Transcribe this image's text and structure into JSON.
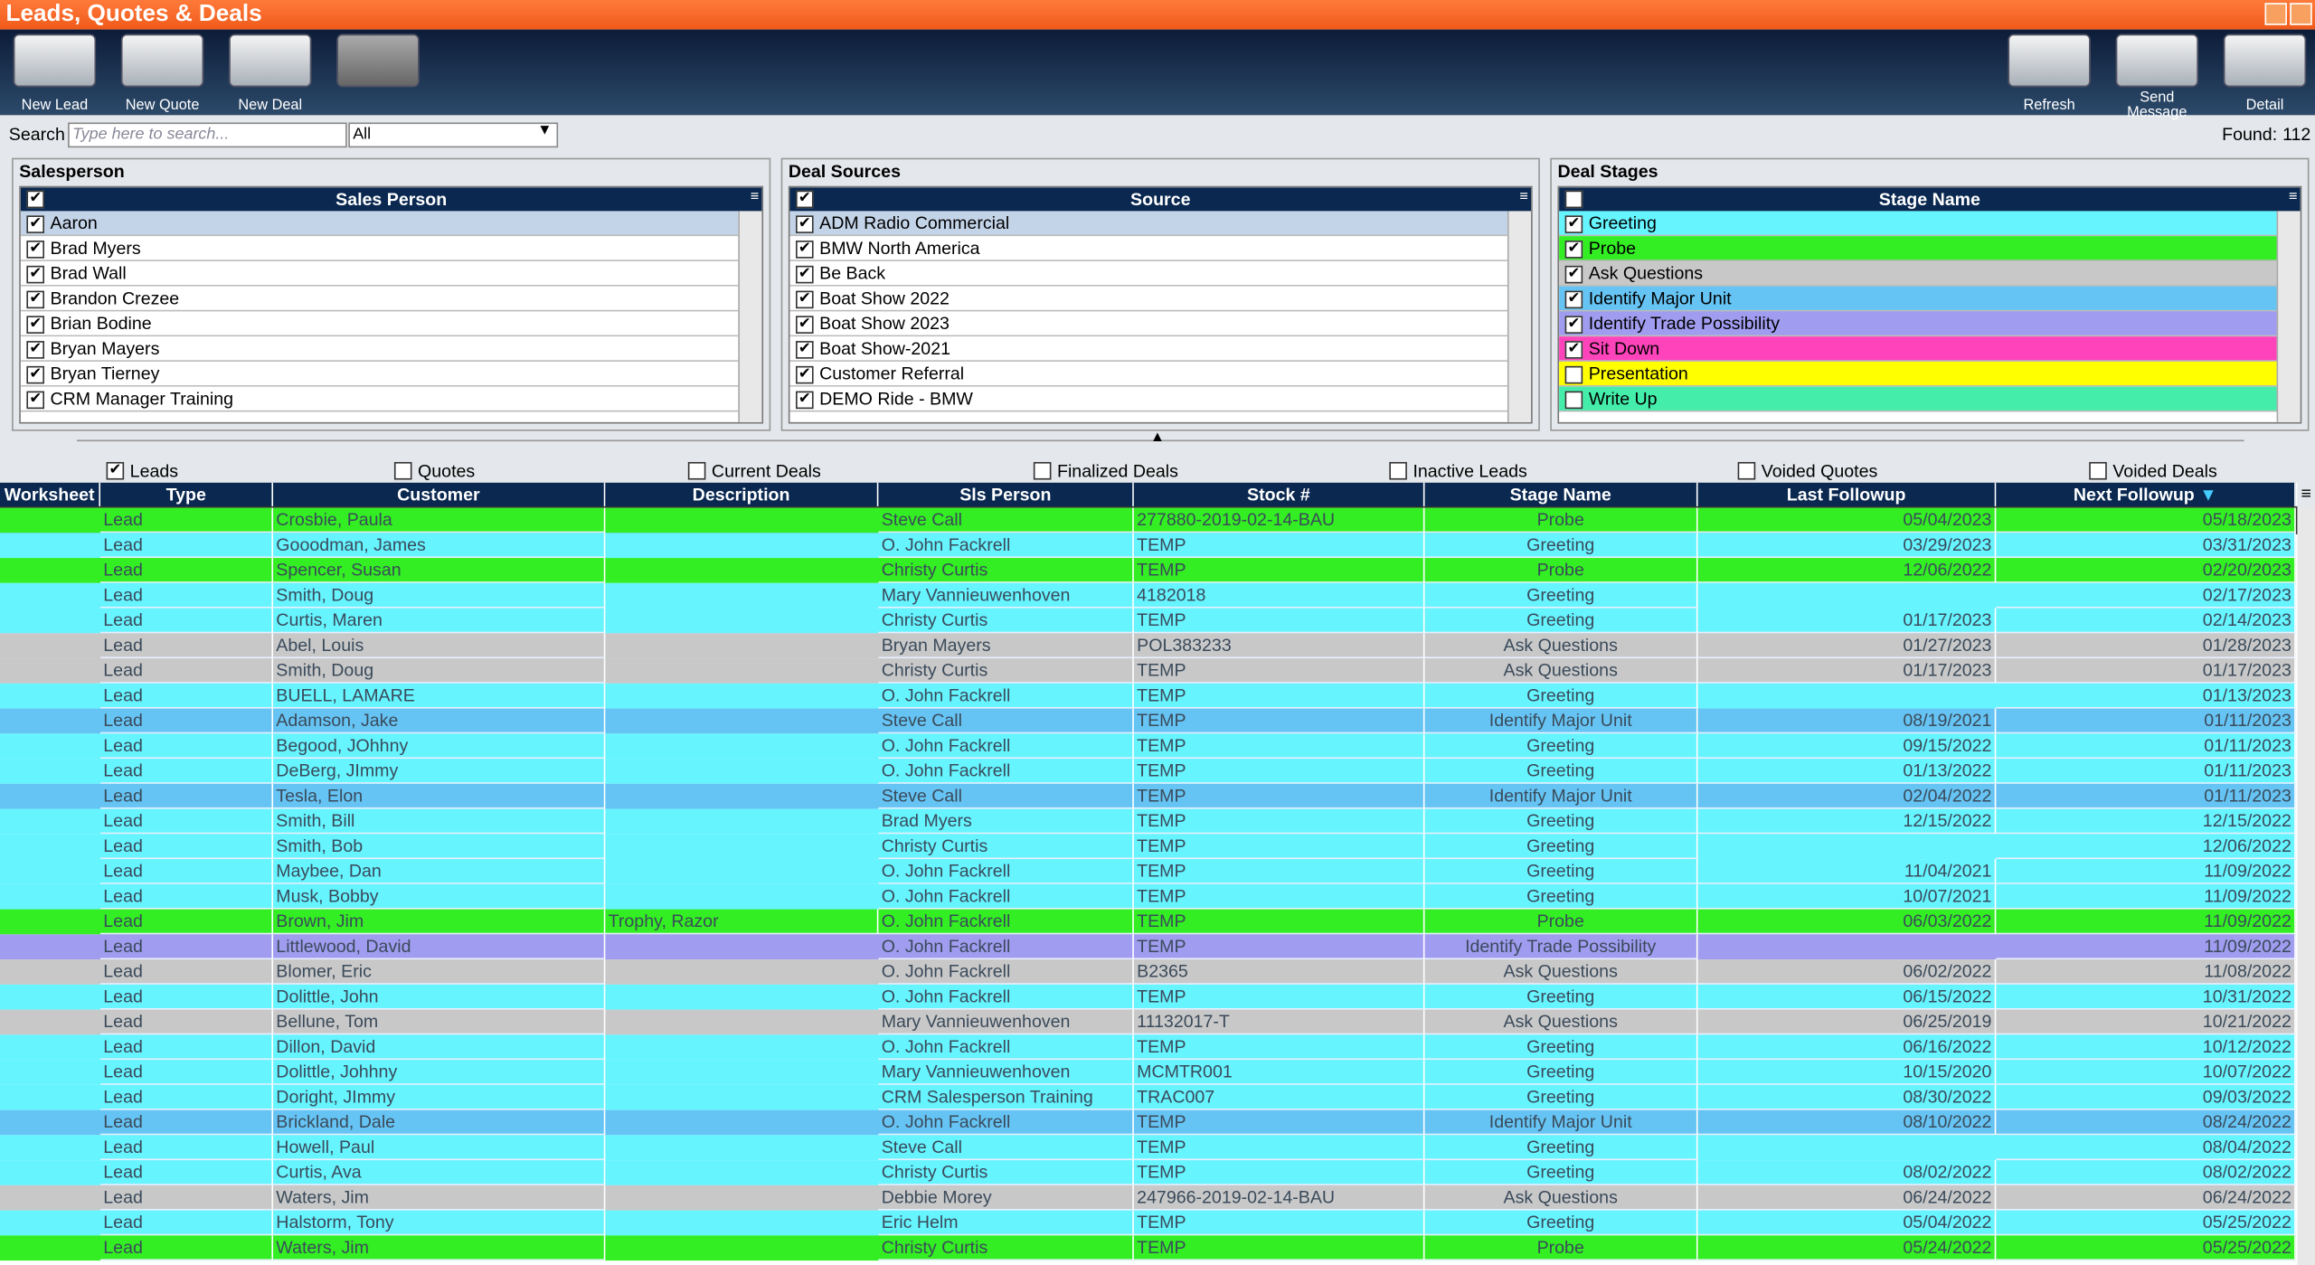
{
  "header": {
    "title": "Leads, Quotes & Deals"
  },
  "toolbar": {
    "left": [
      "New Lead",
      "New Quote",
      "New Deal"
    ],
    "right": [
      "Refresh",
      "Send Message",
      "Detail"
    ]
  },
  "search": {
    "label": "Search",
    "placeholder": "Type here to search...",
    "scope": "All",
    "found_label": "Found:",
    "found": 112
  },
  "panels": [
    {
      "title": "Salesperson",
      "column": "Sales Person",
      "all_checked": true,
      "items": [
        {
          "name": "Aaron",
          "checked": true
        },
        {
          "name": "Brad Myers",
          "checked": true
        },
        {
          "name": "Brad Wall",
          "checked": true
        },
        {
          "name": "Brandon Crezee",
          "checked": true
        },
        {
          "name": "Brian Bodine",
          "checked": true
        },
        {
          "name": "Bryan Mayers",
          "checked": true
        },
        {
          "name": "Bryan Tierney",
          "checked": true
        },
        {
          "name": "CRM Manager Training",
          "checked": true
        }
      ]
    },
    {
      "title": "Deal Sources",
      "column": "Source",
      "all_checked": true,
      "items": [
        {
          "name": "ADM Radio Commercial",
          "checked": true
        },
        {
          "name": "BMW North America",
          "checked": true
        },
        {
          "name": "Be Back",
          "checked": true
        },
        {
          "name": "Boat Show 2022",
          "checked": true
        },
        {
          "name": "Boat Show 2023",
          "checked": true
        },
        {
          "name": "Boat Show-2021",
          "checked": true
        },
        {
          "name": "Customer Referral",
          "checked": true
        },
        {
          "name": "DEMO Ride - BMW",
          "checked": true
        }
      ]
    },
    {
      "title": "Deal Stages",
      "column": "Stage Name",
      "all_checked": false,
      "items": [
        {
          "name": "Greeting",
          "checked": true,
          "color": "#66f4ff"
        },
        {
          "name": "Probe",
          "checked": true,
          "color": "#33ee22"
        },
        {
          "name": "Ask Questions",
          "checked": true,
          "color": "#c8c8c8"
        },
        {
          "name": "Identify Major Unit",
          "checked": true,
          "color": "#66c4f4"
        },
        {
          "name": "Identify Trade Possibility",
          "checked": true,
          "color": "#a09cf0"
        },
        {
          "name": "Sit Down",
          "checked": true,
          "color": "#ff44bb"
        },
        {
          "name": "Presentation",
          "checked": false,
          "color": "#ffff00"
        },
        {
          "name": "Write Up",
          "checked": false,
          "color": "#44eeaa"
        }
      ]
    }
  ],
  "filters": [
    {
      "label": "Leads",
      "checked": true
    },
    {
      "label": "Quotes",
      "checked": false
    },
    {
      "label": "Current Deals",
      "checked": false
    },
    {
      "label": "Finalized Deals",
      "checked": false
    },
    {
      "label": "Inactive Leads",
      "checked": false
    },
    {
      "label": "Voided Quotes",
      "checked": false
    },
    {
      "label": "Voided Deals",
      "checked": false
    }
  ],
  "table": {
    "columns": [
      {
        "key": "worksheet",
        "label": "Worksheet"
      },
      {
        "key": "type",
        "label": "Type"
      },
      {
        "key": "customer",
        "label": "Customer"
      },
      {
        "key": "description",
        "label": "Description"
      },
      {
        "key": "sls_person",
        "label": "Sls Person"
      },
      {
        "key": "stock",
        "label": "Stock #"
      },
      {
        "key": "stage",
        "label": "Stage Name"
      },
      {
        "key": "last_followup",
        "label": "Last Followup"
      },
      {
        "key": "next_followup",
        "label": "Next Followup"
      }
    ],
    "rows": [
      {
        "type": "Lead",
        "customer": "Crosbie, Paula",
        "sls_person": "Steve Call",
        "stock": "277880-2019-02-14-BAU",
        "stage": "Probe",
        "last_followup": "05/04/2023",
        "next_followup": "05/18/2023"
      },
      {
        "type": "Lead",
        "customer": "Gooodman, James",
        "sls_person": "O. John Fackrell",
        "stock": "TEMP",
        "stage": "Greeting",
        "last_followup": "03/29/2023",
        "next_followup": "03/31/2023"
      },
      {
        "type": "Lead",
        "customer": "Spencer, Susan",
        "sls_person": "Christy Curtis",
        "stock": "TEMP",
        "stage": "Probe",
        "last_followup": "12/06/2022",
        "next_followup": "02/20/2023"
      },
      {
        "type": "Lead",
        "customer": "Smith, Doug",
        "sls_person": "Mary Vannieuwenhoven",
        "stock": "4182018",
        "stage": "Greeting",
        "next_followup": "02/17/2023"
      },
      {
        "type": "Lead",
        "customer": "Curtis, Maren",
        "sls_person": "Christy Curtis",
        "stock": "TEMP",
        "stage": "Greeting",
        "last_followup": "01/17/2023",
        "next_followup": "02/14/2023"
      },
      {
        "type": "Lead",
        "customer": "Abel, Louis",
        "sls_person": "Bryan Mayers",
        "stock": "POL383233",
        "stage": "Ask Questions",
        "last_followup": "01/27/2023",
        "next_followup": "01/28/2023"
      },
      {
        "type": "Lead",
        "customer": "Smith, Doug",
        "sls_person": "Christy Curtis",
        "stock": "TEMP",
        "stage": "Ask Questions",
        "last_followup": "01/17/2023",
        "next_followup": "01/17/2023"
      },
      {
        "type": "Lead",
        "customer": "BUELL, LAMARE",
        "sls_person": "O. John Fackrell",
        "stock": "TEMP",
        "stage": "Greeting",
        "next_followup": "01/13/2023"
      },
      {
        "type": "Lead",
        "customer": "Adamson, Jake",
        "sls_person": "Steve Call",
        "stock": "TEMP",
        "stage": "Identify Major Unit",
        "last_followup": "08/19/2021",
        "next_followup": "01/11/2023"
      },
      {
        "type": "Lead",
        "customer": "Begood, JOhhny",
        "sls_person": "O. John Fackrell",
        "stock": "TEMP",
        "stage": "Greeting",
        "last_followup": "09/15/2022",
        "next_followup": "01/11/2023"
      },
      {
        "type": "Lead",
        "customer": "DeBerg, JImmy",
        "sls_person": "O. John Fackrell",
        "stock": "TEMP",
        "stage": "Greeting",
        "last_followup": "01/13/2022",
        "next_followup": "01/11/2023"
      },
      {
        "type": "Lead",
        "customer": "Tesla, Elon",
        "sls_person": "Steve Call",
        "stock": "TEMP",
        "stage": "Identify Major Unit",
        "last_followup": "02/04/2022",
        "next_followup": "01/11/2023"
      },
      {
        "type": "Lead",
        "customer": "Smith, Bill",
        "sls_person": "Brad Myers",
        "stock": "TEMP",
        "stage": "Greeting",
        "last_followup": "12/15/2022",
        "next_followup": "12/15/2022"
      },
      {
        "type": "Lead",
        "customer": "Smith, Bob",
        "sls_person": "Christy Curtis",
        "stock": "TEMP",
        "stage": "Greeting",
        "next_followup": "12/06/2022"
      },
      {
        "type": "Lead",
        "customer": "Maybee, Dan",
        "sls_person": "O. John Fackrell",
        "stock": "TEMP",
        "stage": "Greeting",
        "last_followup": "11/04/2021",
        "next_followup": "11/09/2022"
      },
      {
        "type": "Lead",
        "customer": "Musk, Bobby",
        "sls_person": "O. John Fackrell",
        "stock": "TEMP",
        "stage": "Greeting",
        "last_followup": "10/07/2021",
        "next_followup": "11/09/2022"
      },
      {
        "type": "Lead",
        "customer": "Brown, Jim",
        "description": "Trophy, Razor",
        "sls_person": "O. John Fackrell",
        "stock": "TEMP",
        "stage": "Probe",
        "last_followup": "06/03/2022",
        "next_followup": "11/09/2022"
      },
      {
        "type": "Lead",
        "customer": "Littlewood, David",
        "sls_person": "O. John Fackrell",
        "stock": "TEMP",
        "stage": "Identify Trade Possibility",
        "next_followup": "11/09/2022"
      },
      {
        "type": "Lead",
        "customer": "Blomer, Eric",
        "sls_person": "O. John Fackrell",
        "stock": "B2365",
        "stage": "Ask Questions",
        "last_followup": "06/02/2022",
        "next_followup": "11/08/2022"
      },
      {
        "type": "Lead",
        "customer": "Dolittle, John",
        "sls_person": "O. John Fackrell",
        "stock": "TEMP",
        "stage": "Greeting",
        "last_followup": "06/15/2022",
        "next_followup": "10/31/2022"
      },
      {
        "type": "Lead",
        "customer": "Bellune, Tom",
        "sls_person": "Mary Vannieuwenhoven",
        "stock": "11132017-T",
        "stage": "Ask Questions",
        "last_followup": "06/25/2019",
        "next_followup": "10/21/2022"
      },
      {
        "type": "Lead",
        "customer": "Dillon, David",
        "sls_person": "O. John Fackrell",
        "stock": "TEMP",
        "stage": "Greeting",
        "last_followup": "06/16/2022",
        "next_followup": "10/12/2022"
      },
      {
        "type": "Lead",
        "customer": "Dolittle, Johhny",
        "sls_person": "Mary Vannieuwenhoven",
        "stock": "MCMTR001",
        "stage": "Greeting",
        "last_followup": "10/15/2020",
        "next_followup": "10/07/2022"
      },
      {
        "type": "Lead",
        "customer": "Doright, JImmy",
        "sls_person": "CRM Salesperson Training",
        "stock": "TRAC007",
        "stage": "Greeting",
        "last_followup": "08/30/2022",
        "next_followup": "09/03/2022"
      },
      {
        "type": "Lead",
        "customer": "Brickland, Dale",
        "sls_person": "O. John Fackrell",
        "stock": "TEMP",
        "stage": "Identify Major Unit",
        "last_followup": "08/10/2022",
        "next_followup": "08/24/2022"
      },
      {
        "type": "Lead",
        "customer": "Howell, Paul",
        "sls_person": "Steve Call",
        "stock": "TEMP",
        "stage": "Greeting",
        "next_followup": "08/04/2022"
      },
      {
        "type": "Lead",
        "customer": "Curtis, Ava",
        "sls_person": "Christy Curtis",
        "stock": "TEMP",
        "stage": "Greeting",
        "last_followup": "08/02/2022",
        "next_followup": "08/02/2022"
      },
      {
        "type": "Lead",
        "customer": "Waters, Jim",
        "sls_person": "Debbie Morey",
        "stock": "247966-2019-02-14-BAU",
        "stage": "Ask Questions",
        "last_followup": "06/24/2022",
        "next_followup": "06/24/2022"
      },
      {
        "type": "Lead",
        "customer": "Halstorm, Tony",
        "sls_person": "Eric Helm",
        "stock": "TEMP",
        "stage": "Greeting",
        "last_followup": "05/04/2022",
        "next_followup": "05/25/2022"
      },
      {
        "type": "Lead",
        "customer": "Waters, Jim",
        "sls_person": "Christy Curtis",
        "stock": "TEMP",
        "stage": "Probe",
        "last_followup": "05/24/2022",
        "next_followup": "05/25/2022"
      }
    ]
  }
}
